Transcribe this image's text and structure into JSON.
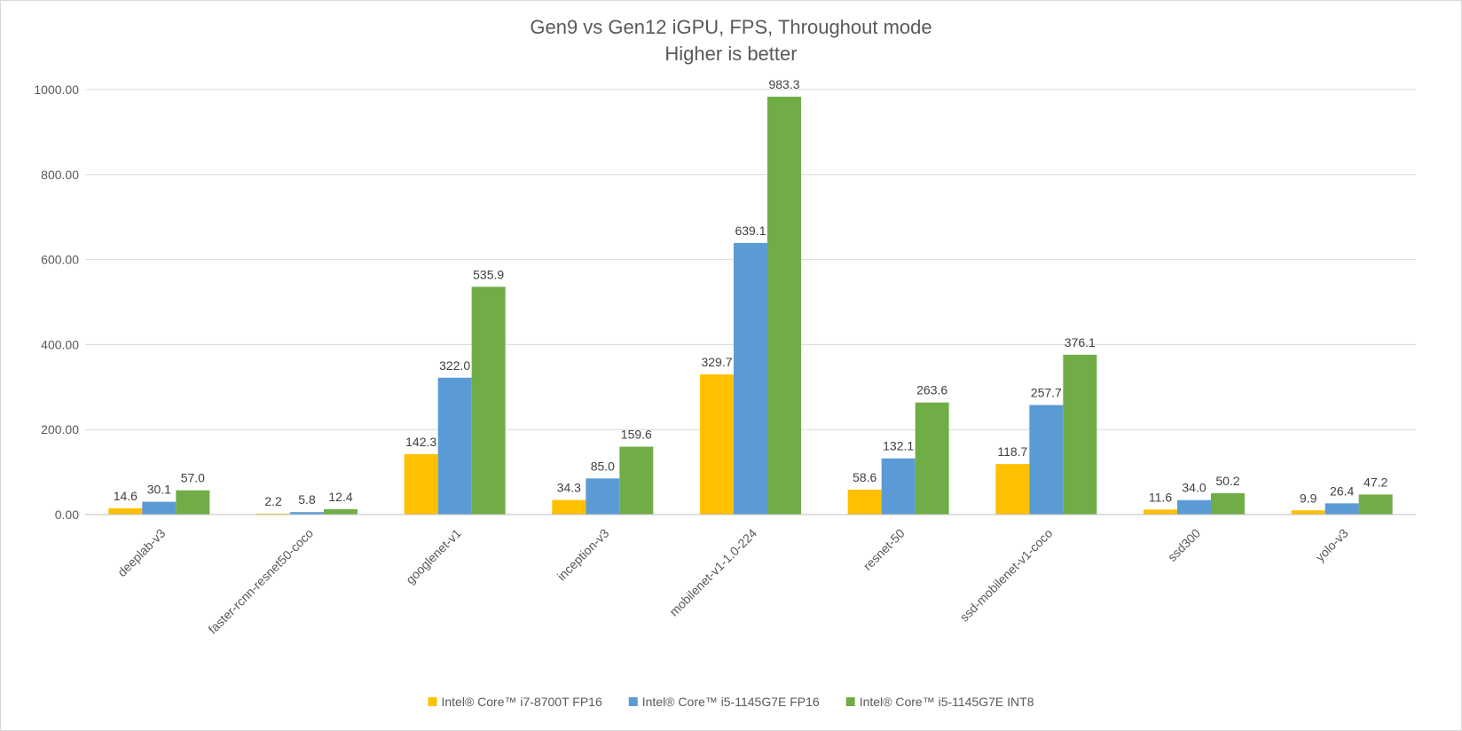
{
  "chart_data": {
    "type": "bar",
    "title": "Gen9 vs Gen12 iGPU, FPS, Throughout mode",
    "subtitle": "Higher is better",
    "xlabel": "",
    "ylabel": "",
    "ylim": [
      0,
      1000
    ],
    "yticks": [
      "0.00",
      "200.00",
      "400.00",
      "600.00",
      "800.00",
      "1000.00"
    ],
    "grid": true,
    "legend_position": "bottom",
    "categories": [
      "deeplab-v3",
      "faster-rcnn-resnet50-coco",
      "googlenet-v1",
      "inception-v3",
      "mobilenet-v1-1.0-224",
      "resnet-50",
      "ssd-mobilenet-v1-coco",
      "ssd300",
      "yolo-v3"
    ],
    "series": [
      {
        "name": "Intel® Core™ i7-8700T FP16",
        "color": "#FFC000",
        "values": [
          14.6,
          2.2,
          142.3,
          34.3,
          329.7,
          58.6,
          118.7,
          11.6,
          9.9
        ],
        "labels": [
          "14.6",
          "2.2",
          "142.3",
          "34.3",
          "329.7",
          "58.6",
          "118.7",
          "11.6",
          "9.9"
        ]
      },
      {
        "name": "Intel® Core™ i5-1145G7E FP16",
        "color": "#5B9BD5",
        "values": [
          30.1,
          5.8,
          322.0,
          85.0,
          639.1,
          132.1,
          257.7,
          34.0,
          26.4
        ],
        "labels": [
          "30.1",
          "5.8",
          "322.0",
          "85.0",
          "639.1",
          "132.1",
          "257.7",
          "34.0",
          "26.4"
        ]
      },
      {
        "name": "Intel® Core™ i5-1145G7E INT8",
        "color": "#70AD47",
        "values": [
          57.0,
          12.4,
          535.9,
          159.6,
          983.3,
          263.6,
          376.1,
          50.2,
          47.2
        ],
        "labels": [
          "57.0",
          "12.4",
          "535.9",
          "159.6",
          "983.3",
          "263.6",
          "376.1",
          "50.2",
          "47.2"
        ]
      }
    ]
  }
}
